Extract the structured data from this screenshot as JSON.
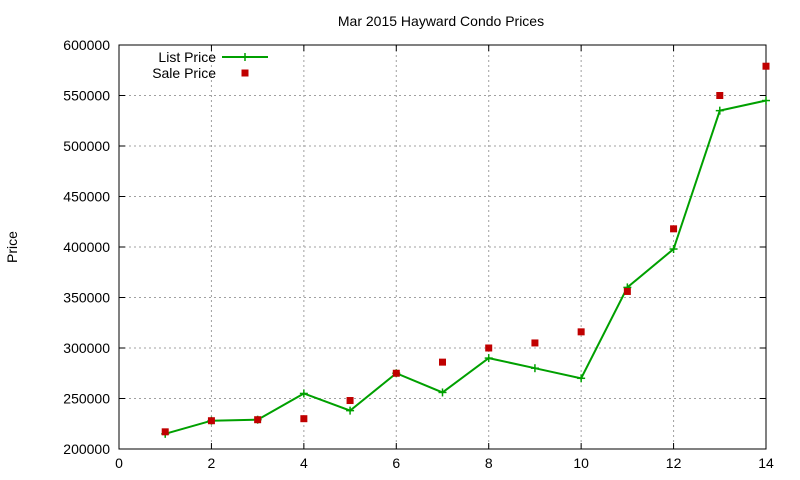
{
  "chart_data": {
    "type": "line",
    "title": "Mar 2015 Hayward Condo Prices",
    "xlabel": "",
    "ylabel": "Price",
    "xlim": [
      0,
      14
    ],
    "ylim": [
      200000,
      600000
    ],
    "xticks": [
      0,
      2,
      4,
      6,
      8,
      10,
      12,
      14
    ],
    "yticks": [
      200000,
      250000,
      300000,
      350000,
      400000,
      450000,
      500000,
      550000,
      600000
    ],
    "grid": true,
    "legend_position": "top-left",
    "series": [
      {
        "name": "List Price",
        "style": "line+points",
        "color": "#00a000",
        "x": [
          1,
          2,
          3,
          4,
          5,
          6,
          7,
          8,
          9,
          10,
          11,
          12,
          13,
          14
        ],
        "y": [
          215000,
          228000,
          229000,
          255000,
          238000,
          275000,
          256000,
          290000,
          280000,
          270000,
          360000,
          398000,
          535000,
          545000
        ]
      },
      {
        "name": "Sale Price",
        "style": "points",
        "color": "#c00000",
        "x": [
          1,
          2,
          3,
          4,
          5,
          6,
          7,
          8,
          9,
          10,
          11,
          12,
          13,
          14
        ],
        "y": [
          217000,
          228000,
          229000,
          230000,
          248000,
          275000,
          286000,
          300000,
          305000,
          316000,
          356000,
          418000,
          550000,
          579000
        ]
      }
    ]
  }
}
